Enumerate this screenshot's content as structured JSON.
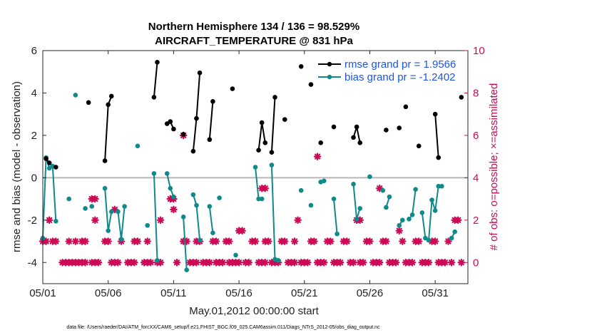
{
  "chart_data": {
    "type": "line",
    "title": "Northern Hemisphere 134 / 136 = 98.529%",
    "subtitle": "AIRCRAFT_TEMPERATURE @ 831 hPa",
    "xlabel": "May.01,2012 00:00:00 start",
    "ylabel": "rmse and bias (model - observation)",
    "ylabel_right": "# of obs: o=possible; ×=assimilated",
    "xlim": [
      0,
      32.5
    ],
    "ylim": [
      -5,
      6
    ],
    "ylim_right": [
      -1.0,
      10.0
    ],
    "x_ticks": [
      0,
      5,
      10,
      15,
      20,
      25,
      30
    ],
    "x_tick_labels": [
      "05/01",
      "05/06",
      "05/11",
      "05/16",
      "05/21",
      "05/26",
      "05/31"
    ],
    "y_ticks": [
      -4,
      -2,
      0,
      2,
      4,
      6
    ],
    "y_ticks_right": [
      0,
      2,
      4,
      6,
      8,
      10
    ],
    "grid": false,
    "legend_position": "top-right",
    "zero_line": 0,
    "colors": {
      "rmse": "#000000",
      "bias": "#0f8a8a",
      "obs": "#cc0a55",
      "zero_line": "#b8b8b8",
      "legend_text": "#1f55e6",
      "right_axis": "#cc0a55"
    },
    "series": [
      {
        "name": "rmse grand pr = 1.9566",
        "role": "rmse",
        "segments": [
          [
            [
              0.25,
              0.9
            ],
            [
              0.5,
              0.7
            ]
          ],
          [
            [
              1.0,
              0.5
            ]
          ],
          [
            [
              3.5,
              3.55
            ]
          ],
          [
            [
              4.75,
              0.8
            ],
            [
              5.0,
              3.45
            ],
            [
              5.25,
              3.85
            ]
          ],
          [
            [
              8.5,
              3.8
            ],
            [
              8.75,
              5.45
            ]
          ],
          [
            [
              9.5,
              2.55
            ],
            [
              9.75,
              2.65
            ],
            [
              10.0,
              2.3
            ]
          ],
          [
            [
              10.75,
              2.05
            ]
          ],
          [
            [
              11.5,
              1.25
            ],
            [
              11.75,
              2.8
            ],
            [
              12.0,
              4.95
            ]
          ],
          [
            [
              12.75,
              1.8
            ],
            [
              13.0,
              3.6
            ]
          ],
          [
            [
              14.5,
              4.2
            ]
          ],
          [
            [
              16.5,
              1.3
            ],
            [
              16.75,
              2.6
            ],
            [
              17.0,
              1.65
            ]
          ],
          [
            [
              17.5,
              1.2
            ],
            [
              17.75,
              3.8
            ]
          ],
          [
            [
              18.5,
              2.75
            ]
          ],
          [
            [
              19.75,
              5.25
            ]
          ],
          [
            [
              20.5,
              4.4
            ]
          ],
          [
            [
              21.25,
              1.65
            ]
          ],
          [
            [
              22.25,
              2.4
            ]
          ],
          [
            [
              23.75,
              1.9
            ],
            [
              24.0,
              2.4
            ],
            [
              24.25,
              1.65
            ]
          ],
          [
            [
              25.0,
              4.75
            ]
          ],
          [
            [
              26.25,
              2.25
            ]
          ],
          [
            [
              27.25,
              2.35
            ]
          ],
          [
            [
              27.75,
              3.35
            ]
          ],
          [
            [
              28.75,
              1.5
            ]
          ],
          [
            [
              30.0,
              3.0
            ],
            [
              30.25,
              0.95
            ]
          ],
          [
            [
              32.0,
              3.8
            ]
          ]
        ]
      },
      {
        "name": "bias grand pr = -1.2402",
        "role": "bias",
        "segments": [
          [
            [
              0.0,
              -2.85
            ],
            [
              0.25,
              0.95
            ],
            [
              0.5,
              0.45
            ],
            [
              0.75,
              0.55
            ],
            [
              1.0,
              -2.05
            ]
          ],
          [
            [
              2.0,
              -1.0
            ]
          ],
          [
            [
              2.5,
              3.9
            ]
          ],
          [
            [
              3.25,
              -1.45
            ]
          ],
          [
            [
              3.75,
              -1.35
            ]
          ],
          [
            [
              4.75,
              -0.5
            ],
            [
              5.0,
              -2.5
            ],
            [
              5.25,
              -1.6
            ]
          ],
          [
            [
              5.75,
              -1.6
            ],
            [
              6.0,
              -2.9
            ],
            [
              6.25,
              -1.35
            ]
          ],
          [
            [
              7.25,
              1.5
            ]
          ],
          [
            [
              8.0,
              -2.25
            ]
          ],
          [
            [
              8.5,
              0.2
            ],
            [
              8.75,
              -3.9
            ]
          ],
          [
            [
              9.5,
              0.2
            ],
            [
              9.75,
              -0.5
            ],
            [
              10.0,
              -0.9
            ]
          ],
          [
            [
              10.75,
              -1.85
            ],
            [
              11.0,
              -4.35
            ]
          ],
          [
            [
              11.5,
              -0.8
            ],
            [
              11.75,
              -1.3
            ],
            [
              12.0,
              -2.95
            ]
          ],
          [
            [
              12.75,
              -1.35
            ],
            [
              13.0,
              -2.6
            ]
          ],
          [
            [
              13.5,
              -0.95
            ]
          ],
          [
            [
              14.75,
              -3.65
            ]
          ],
          [
            [
              16.25,
              0.5
            ],
            [
              16.5,
              -1.0
            ],
            [
              16.75,
              -1.0
            ]
          ],
          [
            [
              17.5,
              0.6
            ],
            [
              17.75,
              -3.85
            ],
            [
              18.0,
              -3.9
            ]
          ],
          [
            [
              19.75,
              -0.6
            ]
          ],
          [
            [
              20.5,
              -1.3
            ]
          ],
          [
            [
              21.25,
              -0.2
            ],
            [
              21.5,
              -0.15
            ]
          ],
          [
            [
              22.25,
              -1.0
            ],
            [
              22.5,
              -2.65
            ]
          ],
          [
            [
              23.75,
              -0.3
            ],
            [
              24.0,
              -1.95
            ],
            [
              24.25,
              -1.45
            ]
          ],
          [
            [
              25.0,
              0.05
            ]
          ],
          [
            [
              26.0,
              -0.6
            ]
          ],
          [
            [
              26.25,
              -1.4
            ],
            [
              26.5,
              -0.9
            ]
          ],
          [
            [
              27.25,
              -2.25
            ],
            [
              27.5,
              -2.0
            ]
          ],
          [
            [
              28.0,
              -1.95
            ],
            [
              28.25,
              -1.75
            ],
            [
              28.5,
              -0.55
            ]
          ],
          [
            [
              29.0,
              -1.65
            ],
            [
              29.25,
              -2.85
            ],
            [
              29.5,
              -2.95
            ],
            [
              29.75,
              -1.05
            ],
            [
              30.0,
              -1.55
            ],
            [
              30.25,
              -0.4
            ],
            [
              30.5,
              -0.4
            ]
          ],
          [
            [
              31.25,
              -2.85
            ],
            [
              31.5,
              -2.55
            ]
          ]
        ]
      },
      {
        "name": "# of obs assimilated",
        "role": "obs",
        "axis": "right",
        "points": [
          [
            0,
            1
          ],
          [
            0.25,
            1
          ],
          [
            0.5,
            2
          ],
          [
            0.75,
            1
          ],
          [
            1.0,
            1
          ],
          [
            1.5,
            0
          ],
          [
            1.75,
            0
          ],
          [
            2.0,
            0
          ],
          [
            2.25,
            0
          ],
          [
            2.5,
            0
          ],
          [
            2.75,
            0
          ],
          [
            2.0,
            1
          ],
          [
            2.5,
            1
          ],
          [
            3.0,
            1
          ],
          [
            3.25,
            1
          ],
          [
            3.0,
            0
          ],
          [
            3.25,
            0
          ],
          [
            3.75,
            3
          ],
          [
            4.0,
            3
          ],
          [
            4.0,
            2
          ],
          [
            3.75,
            0
          ],
          [
            4.0,
            0
          ],
          [
            4.25,
            0
          ],
          [
            4.75,
            1
          ],
          [
            5.0,
            1
          ],
          [
            5.25,
            0
          ],
          [
            5.5,
            0
          ],
          [
            5.75,
            0
          ],
          [
            5.5,
            2.5
          ],
          [
            6.0,
            1
          ],
          [
            6.5,
            0
          ],
          [
            6.75,
            0
          ],
          [
            7.0,
            0
          ],
          [
            7.0,
            1
          ],
          [
            7.25,
            1
          ],
          [
            7.75,
            0
          ],
          [
            8.0,
            0
          ],
          [
            8.25,
            0
          ],
          [
            8.0,
            1
          ],
          [
            8.75,
            0
          ],
          [
            9.0,
            0
          ],
          [
            9.0,
            2
          ],
          [
            9.75,
            3
          ],
          [
            10.0,
            3
          ],
          [
            10.0,
            2.5
          ],
          [
            10.25,
            0
          ],
          [
            10.75,
            6
          ],
          [
            10.75,
            1
          ],
          [
            11.0,
            1
          ],
          [
            11.25,
            0
          ],
          [
            11.5,
            0
          ],
          [
            11.75,
            0
          ],
          [
            11.75,
            1
          ],
          [
            12.0,
            1
          ],
          [
            12.25,
            0
          ],
          [
            12.5,
            0
          ],
          [
            12.75,
            0
          ],
          [
            13.0,
            1
          ],
          [
            13.25,
            1
          ],
          [
            13.25,
            0
          ],
          [
            13.5,
            0
          ],
          [
            13.75,
            0
          ],
          [
            14.0,
            1
          ],
          [
            14.25,
            1
          ],
          [
            14.25,
            0
          ],
          [
            14.5,
            0
          ],
          [
            14.75,
            0
          ],
          [
            15.0,
            0
          ],
          [
            15.0,
            1.5
          ],
          [
            15.25,
            1.5
          ],
          [
            15.5,
            0
          ],
          [
            15.75,
            0
          ],
          [
            16.0,
            1
          ],
          [
            16.25,
            1
          ],
          [
            16.5,
            0
          ],
          [
            16.75,
            0
          ],
          [
            17.0,
            0
          ],
          [
            16.75,
            3.5
          ],
          [
            17.0,
            3.5
          ],
          [
            17.0,
            1
          ],
          [
            17.25,
            1
          ],
          [
            17.5,
            0
          ],
          [
            17.75,
            0
          ],
          [
            18.0,
            0
          ],
          [
            18.25,
            1
          ],
          [
            18.5,
            1
          ],
          [
            18.75,
            0
          ],
          [
            19.0,
            0
          ],
          [
            19.25,
            0
          ],
          [
            19.25,
            1
          ],
          [
            19.5,
            2
          ],
          [
            19.75,
            0
          ],
          [
            20.0,
            0
          ],
          [
            20.25,
            0
          ],
          [
            20.5,
            1
          ],
          [
            20.75,
            1
          ],
          [
            21.0,
            5
          ],
          [
            21.0,
            0
          ],
          [
            21.25,
            0
          ],
          [
            21.5,
            0
          ],
          [
            21.75,
            1
          ],
          [
            22.0,
            1
          ],
          [
            22.25,
            0
          ],
          [
            22.5,
            0
          ],
          [
            22.75,
            0
          ],
          [
            23.0,
            1
          ],
          [
            23.25,
            1
          ],
          [
            23.5,
            0
          ],
          [
            23.75,
            0
          ],
          [
            24.0,
            2
          ],
          [
            24.25,
            2
          ],
          [
            24.25,
            0
          ],
          [
            24.5,
            0
          ],
          [
            24.75,
            1
          ],
          [
            25.0,
            1
          ],
          [
            25.25,
            0
          ],
          [
            25.5,
            0
          ],
          [
            25.75,
            0
          ],
          [
            25.75,
            3.5
          ],
          [
            26.0,
            1
          ],
          [
            26.25,
            1
          ],
          [
            26.5,
            0
          ],
          [
            26.75,
            0
          ],
          [
            27.0,
            0
          ],
          [
            27.25,
            1.5
          ],
          [
            27.5,
            1
          ],
          [
            27.75,
            0
          ],
          [
            28.0,
            0
          ],
          [
            28.25,
            0
          ],
          [
            28.5,
            1
          ],
          [
            28.75,
            1
          ],
          [
            29.0,
            0
          ],
          [
            29.25,
            0
          ],
          [
            29.5,
            0
          ],
          [
            29.75,
            1
          ],
          [
            30.0,
            1
          ],
          [
            30.25,
            0
          ],
          [
            30.5,
            0
          ],
          [
            30.75,
            0
          ],
          [
            31.0,
            1
          ],
          [
            31.5,
            2
          ],
          [
            31.75,
            2
          ],
          [
            31.25,
            0
          ],
          [
            32.0,
            0
          ]
        ]
      }
    ],
    "legend": [
      {
        "label": "rmse grand pr = 1.9566",
        "role": "rmse"
      },
      {
        "label": "bias grand pr = -1.2402",
        "role": "bias"
      }
    ],
    "footnote": "data file: /Users/raeder/DAI/ATM_forcXX/CAM6_setup/f.e21.FHIST_BGC.f09_025.CAM6assim.011/Diags_NTrS_2012-05/obs_diag_output.nc"
  }
}
